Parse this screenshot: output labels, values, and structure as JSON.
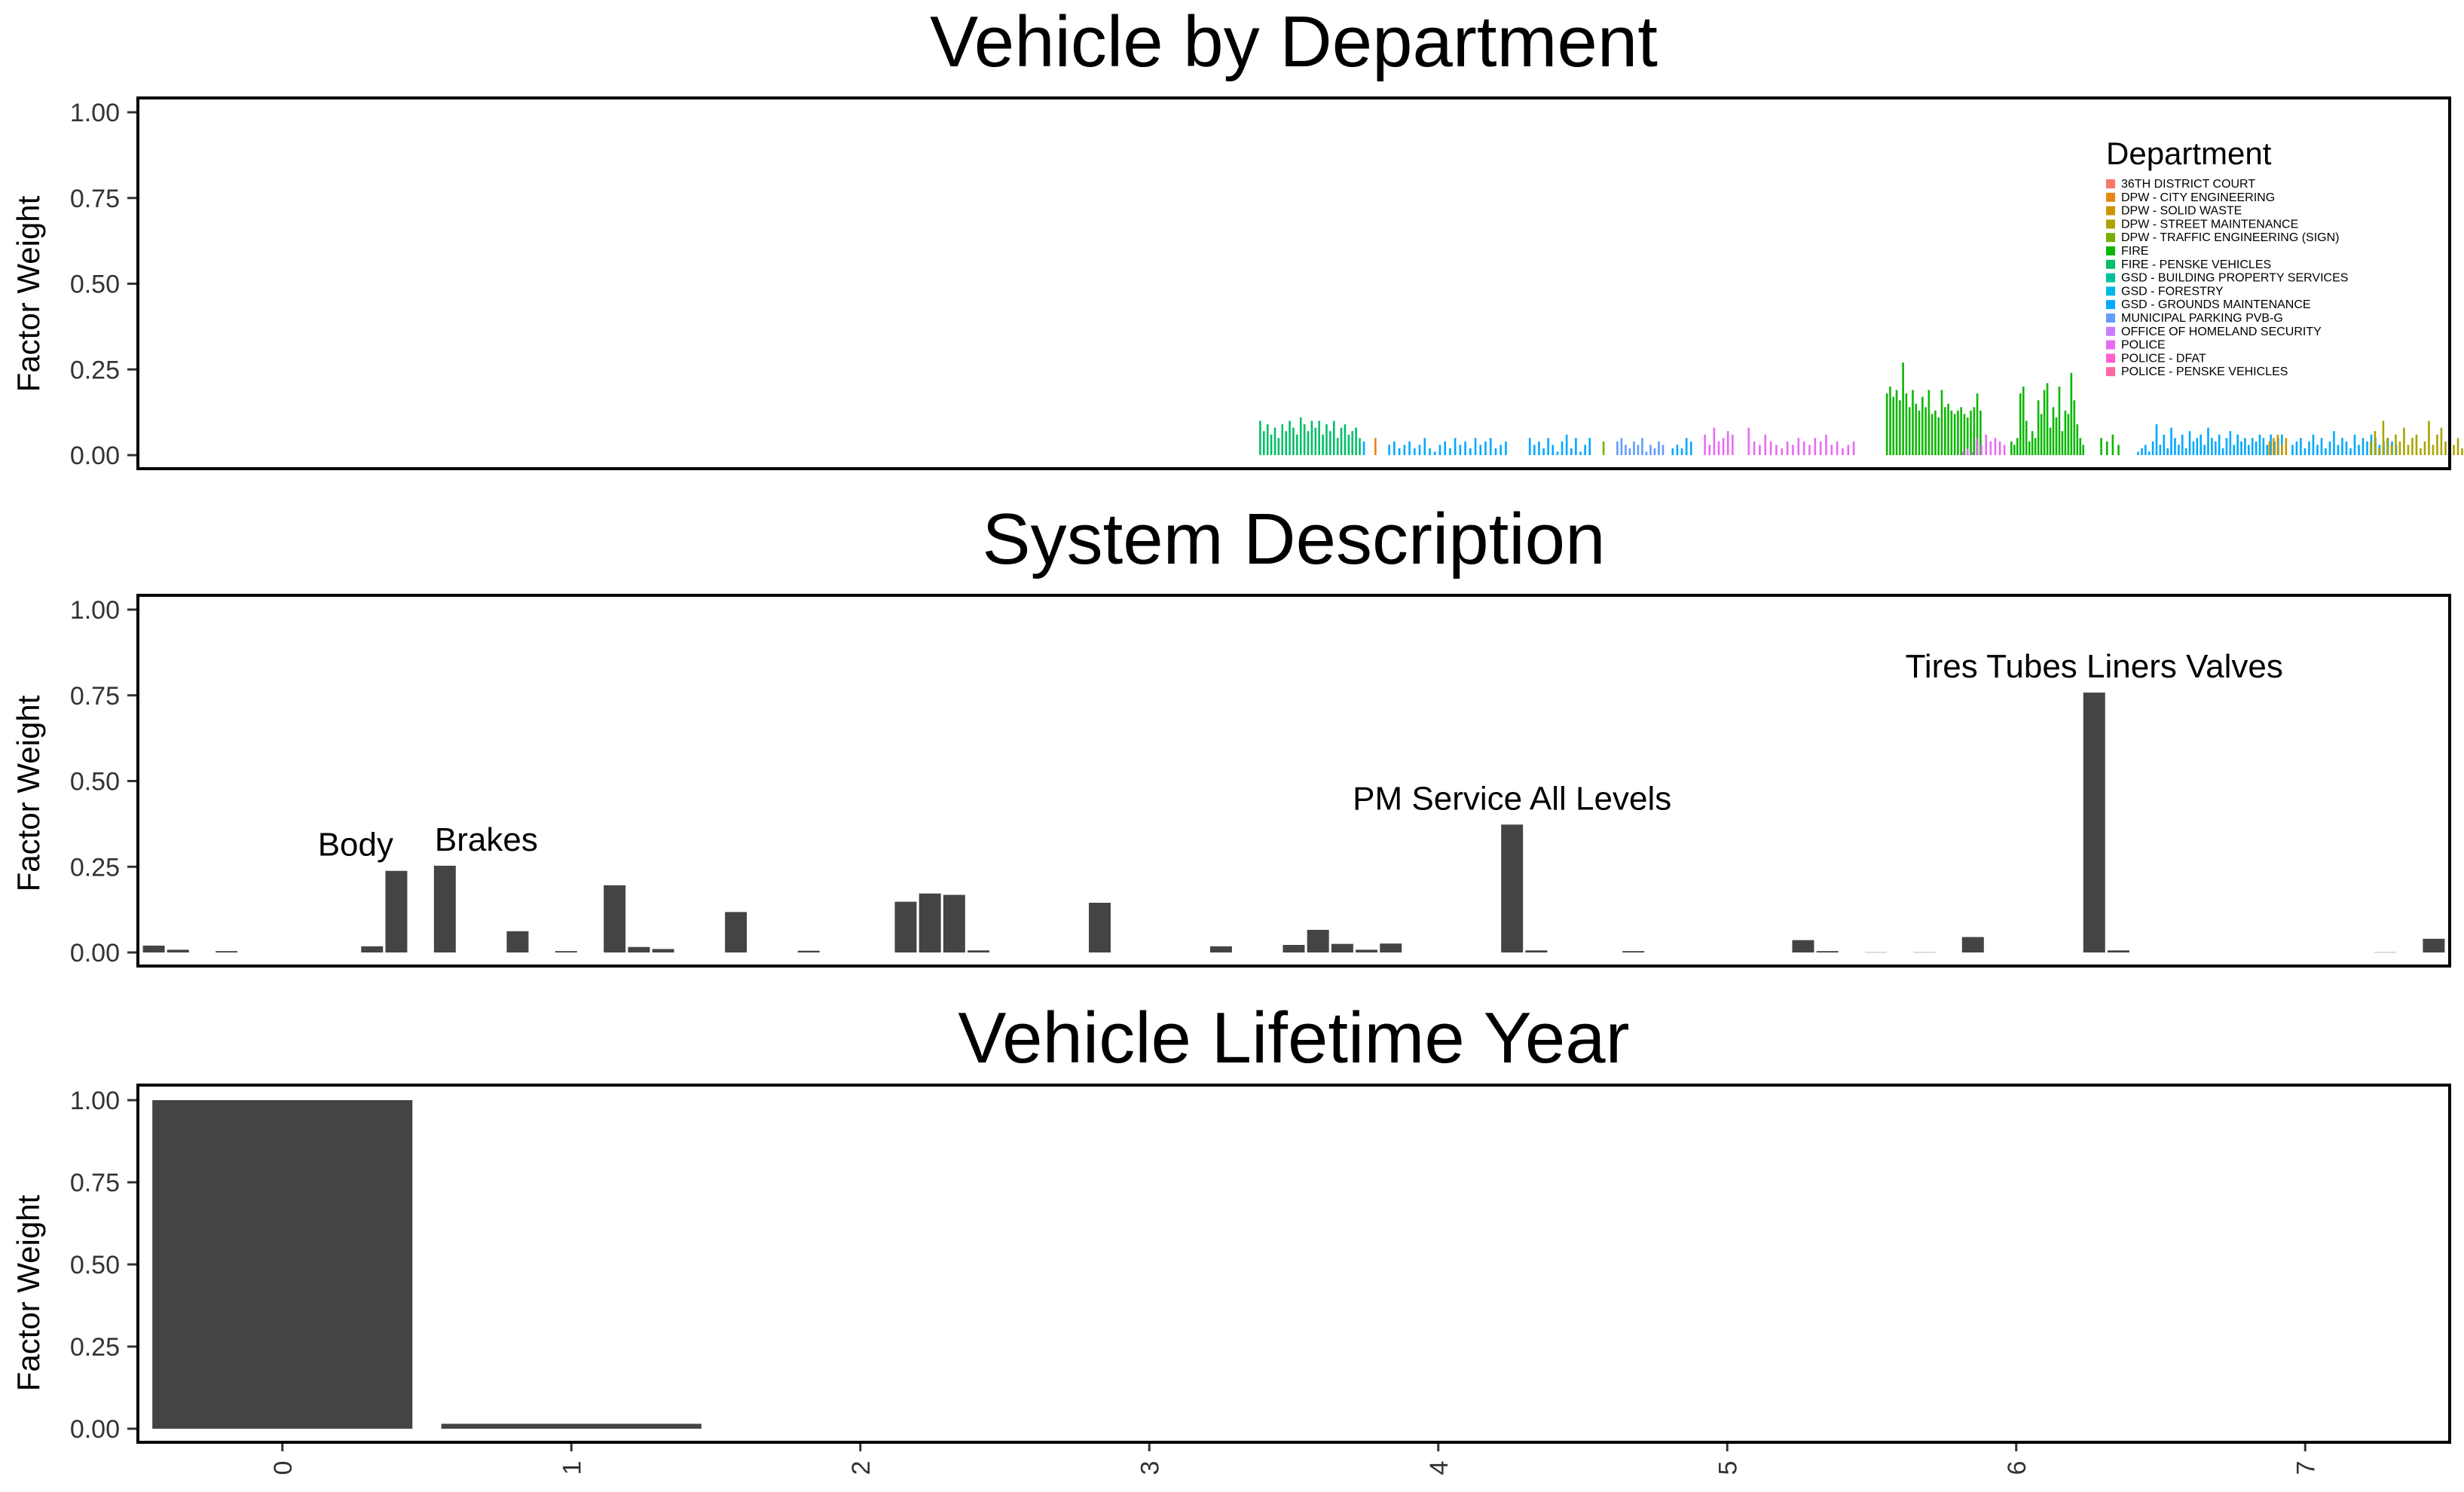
{
  "chart_data": [
    {
      "type": "bar",
      "title": "Vehicle by Department",
      "xlabel": "",
      "ylabel": "Factor Weight",
      "ylim": [
        0,
        1.0
      ],
      "yticks": [
        "0.00",
        "0.25",
        "0.50",
        "0.75",
        "1.00"
      ],
      "grid": false,
      "legend": {
        "title": "Department",
        "placement": "top-right",
        "entries": [
          {
            "label": "36TH DISTRICT COURT",
            "color": "#F8766D"
          },
          {
            "label": "DPW - CITY ENGINEERING",
            "color": "#E68613"
          },
          {
            "label": "DPW - SOLID WASTE",
            "color": "#CD9600"
          },
          {
            "label": "DPW - STREET MAINTENANCE",
            "color": "#ABA300"
          },
          {
            "label": "DPW - TRAFFIC ENGINEERING (SIGN)",
            "color": "#7CAE00"
          },
          {
            "label": "FIRE",
            "color": "#0CB702"
          },
          {
            "label": "FIRE - PENSKE VEHICLES",
            "color": "#00BE67"
          },
          {
            "label": "GSD - BUILDING PROPERTY SERVICES",
            "color": "#00C19A"
          },
          {
            "label": "GSD - FORESTRY",
            "color": "#00B8E7"
          },
          {
            "label": "GSD - GROUNDS MAINTENANCE",
            "color": "#00A9FF"
          },
          {
            "label": "MUNICIPAL PARKING PVB-G",
            "color": "#619CFF"
          },
          {
            "label": "OFFICE OF HOMELAND SECURITY",
            "color": "#C77CFF"
          },
          {
            "label": "POLICE",
            "color": "#E76BF3"
          },
          {
            "label": "POLICE - DFAT",
            "color": "#FF61CC"
          },
          {
            "label": "POLICE - PENSKE VEHICLES",
            "color": "#FF68A1"
          }
        ]
      },
      "xrange": [
        0,
        1000
      ],
      "groups": [
        {
          "department": "FIRE - PENSKE VEHICLES",
          "x_start": 485,
          "step": 1.6,
          "values": [
            0.1,
            0.07,
            0.09,
            0.06,
            0.08,
            0.05,
            0.09,
            0.07,
            0.1,
            0.08,
            0.06,
            0.11,
            0.09,
            0.07,
            0.1,
            0.08,
            0.1,
            0.06,
            0.09,
            0.07,
            0.1,
            0.05,
            0.08,
            0.09,
            0.06,
            0.07,
            0.08,
            0.05
          ]
        },
        {
          "department": "GSD - GROUNDS MAINTENANCE",
          "x_start": 530,
          "step": 1.8,
          "values": [
            0.04
          ]
        },
        {
          "department": "DPW - CITY ENGINEERING",
          "x_start": 535,
          "step": 1.8,
          "values": [
            0.05
          ]
        },
        {
          "department": "GSD - GROUNDS MAINTENANCE",
          "x_start": 541,
          "step": 2.2,
          "values": [
            0.03,
            0.04,
            0.02,
            0.03,
            0.04,
            0.02,
            0.03,
            0.05,
            0.02,
            0.01,
            0.03,
            0.04,
            0.02,
            0.05,
            0.03,
            0.04,
            0.02,
            0.05,
            0.03,
            0.04,
            0.05,
            0.02,
            0.03,
            0.04
          ]
        },
        {
          "department": "GSD - GROUNDS MAINTENANCE",
          "x_start": 602,
          "step": 2.0,
          "values": [
            0.05,
            0.03,
            0.04,
            0.02,
            0.05,
            0.03,
            0.01,
            0.04,
            0.06,
            0.02,
            0.05,
            0.01,
            0.03,
            0.05
          ]
        },
        {
          "department": "DPW - TRAFFIC ENGINEERING (SIGN)",
          "x_start": 634,
          "step": 2.0,
          "values": [
            0.04
          ]
        },
        {
          "department": "MUNICIPAL PARKING PVB-G",
          "x_start": 640,
          "step": 1.8,
          "values": [
            0.04,
            0.05,
            0.03,
            0.02,
            0.04,
            0.03,
            0.05,
            0.01,
            0.03,
            0.02,
            0.04,
            0.03
          ]
        },
        {
          "department": "GSD - GROUNDS MAINTENANCE",
          "x_start": 664,
          "step": 2.0,
          "values": [
            0.02,
            0.03,
            0.02,
            0.05,
            0.04
          ]
        },
        {
          "department": "POLICE",
          "x_start": 678,
          "step": 2.0,
          "values": [
            0.06,
            0.03,
            0.08,
            0.04,
            0.05,
            0.07,
            0.06
          ]
        },
        {
          "department": "POLICE",
          "x_start": 697,
          "step": 2.4,
          "values": [
            0.08,
            0.04,
            0.03,
            0.06,
            0.04,
            0.03,
            0.02,
            0.04,
            0.03,
            0.05,
            0.04,
            0.03,
            0.05,
            0.04,
            0.06,
            0.03,
            0.04,
            0.02,
            0.03,
            0.04
          ]
        },
        {
          "department": "FIRE",
          "x_start": 757,
          "step": 1.4,
          "values": [
            0.18,
            0.2,
            0.17,
            0.19,
            0.16,
            0.27,
            0.18,
            0.14,
            0.19,
            0.15,
            0.13,
            0.17,
            0.14,
            0.19,
            0.12,
            0.13,
            0.11,
            0.19,
            0.14,
            0.15,
            0.13,
            0.12,
            0.13,
            0.14,
            0.12,
            0.11,
            0.13,
            0.14,
            0.18,
            0.13
          ]
        },
        {
          "department": "POLICE",
          "x_start": 790,
          "step": 2.0,
          "values": [
            0.01,
            0.02,
            0.01,
            0.05,
            0.03,
            0.06,
            0.04,
            0.05,
            0.04,
            0.03
          ]
        },
        {
          "department": "FIRE",
          "x_start": 811,
          "step": 1.3,
          "values": [
            0.04,
            0.03,
            0.05,
            0.18,
            0.2,
            0.1,
            0.04,
            0.07,
            0.05,
            0.16,
            0.12,
            0.19,
            0.21,
            0.08,
            0.14,
            0.11,
            0.2,
            0.07,
            0.13,
            0.12,
            0.24,
            0.16,
            0.09,
            0.05,
            0.03
          ]
        },
        {
          "department": "FIRE",
          "x_start": 850,
          "step": 2.5,
          "values": [
            0.05,
            0.04,
            0.06,
            0.03
          ]
        },
        {
          "department": "GSD - GROUNDS MAINTENANCE",
          "x_start": 866,
          "step": 1.6,
          "values": [
            0.01,
            0.02,
            0.03,
            0.01,
            0.04,
            0.09,
            0.03,
            0.06,
            0.02,
            0.08,
            0.05,
            0.03,
            0.06,
            0.02,
            0.07,
            0.04,
            0.05,
            0.06,
            0.03,
            0.08,
            0.05,
            0.04,
            0.06,
            0.02,
            0.05,
            0.07,
            0.03,
            0.06,
            0.04,
            0.05,
            0.03,
            0.05,
            0.04,
            0.06,
            0.05,
            0.03,
            0.06,
            0.04,
            0.05,
            0.06
          ]
        },
        {
          "department": "DPW - SOLID WASTE",
          "x_start": 923,
          "step": 1.8,
          "values": [
            0.04,
            0.05,
            0.06,
            0.03,
            0.05
          ]
        },
        {
          "department": "GSD - GROUNDS MAINTENANCE",
          "x_start": 933,
          "step": 1.8,
          "values": [
            0.03,
            0.04,
            0.05,
            0.02,
            0.04,
            0.06,
            0.03,
            0.05,
            0.02,
            0.04,
            0.07,
            0.03,
            0.05,
            0.04,
            0.02,
            0.06,
            0.03,
            0.05,
            0.04,
            0.06,
            0.05,
            0.03,
            0.04,
            0.05,
            0.04,
            0.03
          ]
        },
        {
          "department": "DPW - STREET MAINTENANCE",
          "x_start": 967,
          "step": 1.8,
          "values": [
            0.04,
            0.07,
            0.02,
            0.1,
            0.05,
            0.03,
            0.06,
            0.04,
            0.08,
            0.03,
            0.05,
            0.06,
            0.02,
            0.04,
            0.1,
            0.03,
            0.06,
            0.08,
            0.04,
            0.06,
            0.03,
            0.05,
            0.02,
            0.04,
            0.03,
            0.02,
            0.01
          ]
        }
      ]
    },
    {
      "type": "bar",
      "title": "System Description",
      "xlabel": "",
      "ylabel": "Factor Weight",
      "ylim": [
        0,
        1.0
      ],
      "yticks": [
        "0.00",
        "0.25",
        "0.50",
        "0.75",
        "1.00"
      ],
      "grid": false,
      "xrange": [
        0,
        81
      ],
      "values": [
        0.02,
        0.008,
        0,
        0.004,
        0,
        0,
        0,
        0,
        0,
        0.018,
        0.238,
        0,
        0.253,
        0,
        0,
        0.062,
        0,
        0.004,
        0,
        0.196,
        0.016,
        0.01,
        0,
        0,
        0.118,
        0,
        0,
        0.005,
        0,
        0,
        0,
        0.148,
        0.172,
        0.168,
        0.006,
        0,
        0,
        0,
        0,
        0.145,
        0,
        0,
        0,
        0,
        0.018,
        0,
        0,
        0.022,
        0.066,
        0.025,
        0.008,
        0.026,
        0,
        0,
        0,
        0,
        0.373,
        0.006,
        0,
        0,
        0,
        0.004,
        0,
        0,
        0,
        0,
        0,
        0,
        0.036,
        0.004,
        0,
        0.002,
        0,
        0.002,
        0,
        0.045,
        0,
        0,
        0,
        0,
        0.758,
        0.006,
        0,
        0,
        0,
        0,
        0,
        0,
        0,
        0,
        0,
        0,
        0.002,
        0,
        0.04
      ],
      "annotations": [
        {
          "text": "Body",
          "index": 10
        },
        {
          "text": "Brakes",
          "index": 12
        },
        {
          "text": "PM Service All Levels",
          "index": 56
        },
        {
          "text": "Tires Tubes Liners Valves",
          "index": 80
        }
      ]
    },
    {
      "type": "bar",
      "title": "Vehicle Lifetime Year",
      "xlabel": "",
      "ylabel": "Factor Weight",
      "ylim": [
        0,
        1.0
      ],
      "yticks": [
        "0.00",
        "0.25",
        "0.50",
        "0.75",
        "1.00"
      ],
      "grid": false,
      "categories": [
        "0",
        "1",
        "2",
        "3",
        "4",
        "5",
        "6",
        "7"
      ],
      "values": [
        1.0,
        0.015,
        0,
        0,
        0,
        0,
        0,
        0
      ]
    }
  ]
}
